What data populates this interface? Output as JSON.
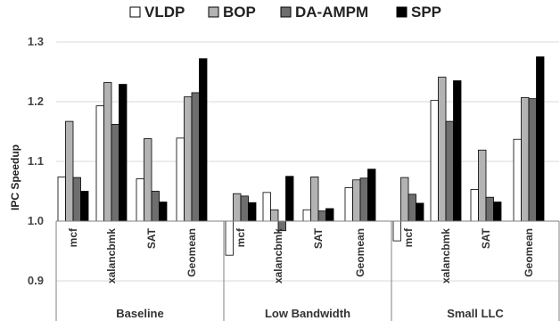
{
  "chart_data": {
    "type": "bar",
    "ylabel": "IPC Speedup",
    "ylim": [
      0.85,
      1.3
    ],
    "yticks": [
      "0.9",
      "1.0",
      "1.1",
      "1.2",
      "1.3"
    ],
    "grid": true,
    "legend_position": "top",
    "series": [
      {
        "name": "VLDP",
        "color": "#ffffff"
      },
      {
        "name": "BOP",
        "color": "#b3b3b3"
      },
      {
        "name": "DA-AMPM",
        "color": "#6e6e6e"
      },
      {
        "name": "SPP",
        "color": "#000000"
      }
    ],
    "groups": [
      {
        "name": "Baseline",
        "categories": [
          {
            "label": "mcf",
            "values": [
              1.074,
              1.167,
              1.073,
              1.05
            ]
          },
          {
            "label": "xalancbmk",
            "values": [
              1.193,
              1.232,
              1.162,
              1.229
            ]
          },
          {
            "label": "SAT",
            "values": [
              1.071,
              1.138,
              1.05,
              1.032
            ]
          },
          {
            "label": "Geomean",
            "values": [
              1.139,
              1.208,
              1.215,
              1.272
            ]
          }
        ]
      },
      {
        "name": "Low Bandwidth",
        "categories": [
          {
            "label": "mcf",
            "values": [
              0.943,
              1.046,
              1.042,
              1.031
            ]
          },
          {
            "label": "xalancbmk",
            "values": [
              1.048,
              1.019,
              0.984,
              1.075
            ]
          },
          {
            "label": "SAT",
            "values": [
              1.019,
              1.074,
              1.017,
              1.021
            ]
          },
          {
            "label": "Geomean",
            "values": [
              1.056,
              1.069,
              1.072,
              1.087
            ]
          }
        ]
      },
      {
        "name": "Small LLC",
        "categories": [
          {
            "label": "mcf",
            "values": [
              0.967,
              1.073,
              1.045,
              1.03
            ]
          },
          {
            "label": "xalancbmk",
            "values": [
              1.202,
              1.241,
              1.167,
              1.235
            ]
          },
          {
            "label": "SAT",
            "values": [
              1.053,
              1.119,
              1.04,
              1.032
            ]
          },
          {
            "label": "Geomean",
            "values": [
              1.137,
              1.207,
              1.205,
              1.275
            ]
          }
        ]
      }
    ]
  }
}
